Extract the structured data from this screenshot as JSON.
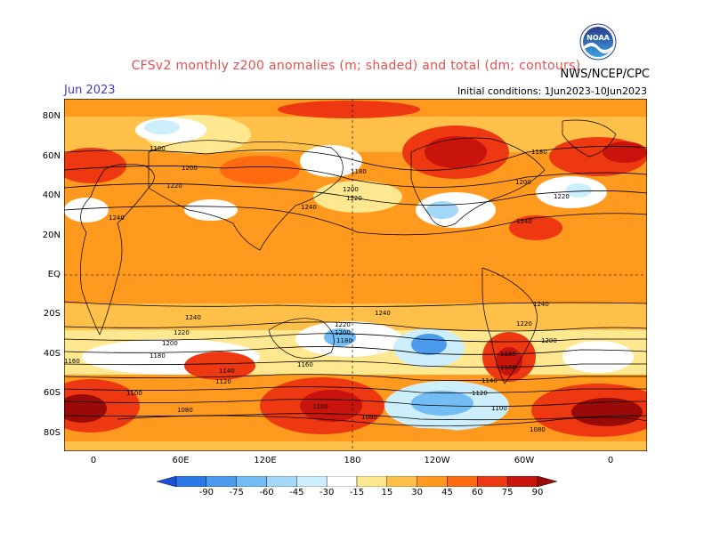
{
  "header": {
    "title": "CFSv2 monthly z200 anomalies (m; shaded) and total (dm; contours)",
    "month": "Jun 2023",
    "source": "NWS/NCEP/CPC",
    "initial_conditions": "Initial conditions: 1Jun2023-10Jun2023",
    "logo_text": "NOAA"
  },
  "map": {
    "lat_labels": [
      "80N",
      "60N",
      "40N",
      "20N",
      "EQ",
      "20S",
      "40S",
      "60S",
      "80S"
    ],
    "lon_labels": [
      "0",
      "60E",
      "120E",
      "180",
      "120W",
      "60W",
      "0"
    ],
    "contour_labels": [
      "1180",
      "1200",
      "1220",
      "1240",
      "1180",
      "1200",
      "1220",
      "1180",
      "1200",
      "1220",
      "1240",
      "1240",
      "1200",
      "1220",
      "1240",
      "1240",
      "1240",
      "1220",
      "1200",
      "1200",
      "1180",
      "1160",
      "1140",
      "1120",
      "1100",
      "1080",
      "1240",
      "1220",
      "1200",
      "1180",
      "1160",
      "1140",
      "1120",
      "1100",
      "1080",
      "1220",
      "1200",
      "1180",
      "1160",
      "1140",
      "1120",
      "1100",
      "1080"
    ]
  },
  "colorbar": {
    "labels": [
      "-90",
      "-75",
      "-60",
      "-45",
      "-30",
      "-15",
      "15",
      "30",
      "45",
      "60",
      "75",
      "90"
    ],
    "colors": [
      "#1e50d8",
      "#2a78e8",
      "#4a9aee",
      "#74bcf4",
      "#a4d8f8",
      "#cdeefb",
      "#ffffff",
      "#ffe890",
      "#ffc04a",
      "#ff9a1e",
      "#ff6a10",
      "#ee3812",
      "#c8140c",
      "#9a0a08"
    ]
  }
}
